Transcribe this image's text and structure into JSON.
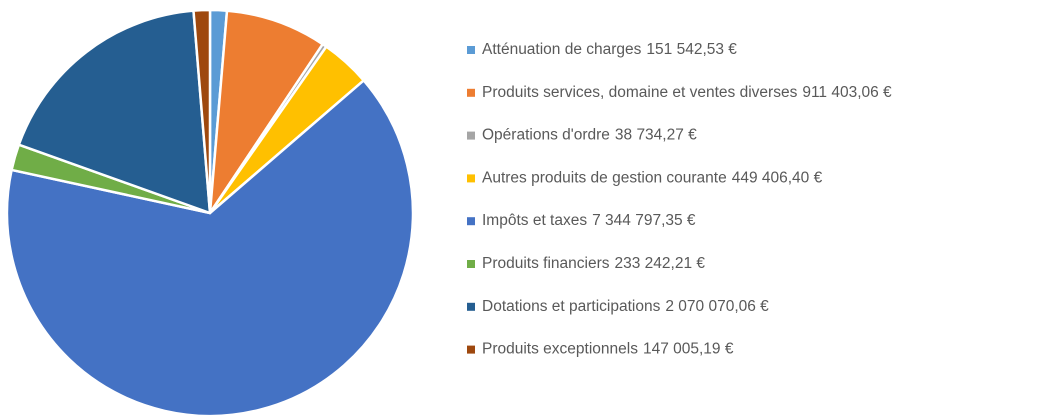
{
  "chart_data": {
    "type": "pie",
    "categories": [
      "Atténuation de charges",
      "Produits services, domaine et ventes diverses",
      "Opérations d'ordre",
      "Autres produits de gestion courante",
      "Impôts et taxes",
      "Produits financiers",
      "Dotations et participations",
      "Produits exceptionnels"
    ],
    "values": [
      151542.53,
      911403.06,
      38734.27,
      449406.4,
      7344797.35,
      233242.21,
      2070070.06,
      147005.19
    ],
    "value_labels": [
      "151 542,53 €",
      "911 403,06 €",
      "38 734,27 €",
      "449 406,40 €",
      "7 344 797,35 €",
      "233 242,21 €",
      "2 070 070,06 €",
      "147 005,19 €"
    ],
    "colors": [
      "#5b9bd5",
      "#ed7d31",
      "#a5a5a5",
      "#ffc000",
      "#4472c4",
      "#70ad47",
      "#255e91",
      "#9e480e"
    ],
    "legend": "right"
  }
}
